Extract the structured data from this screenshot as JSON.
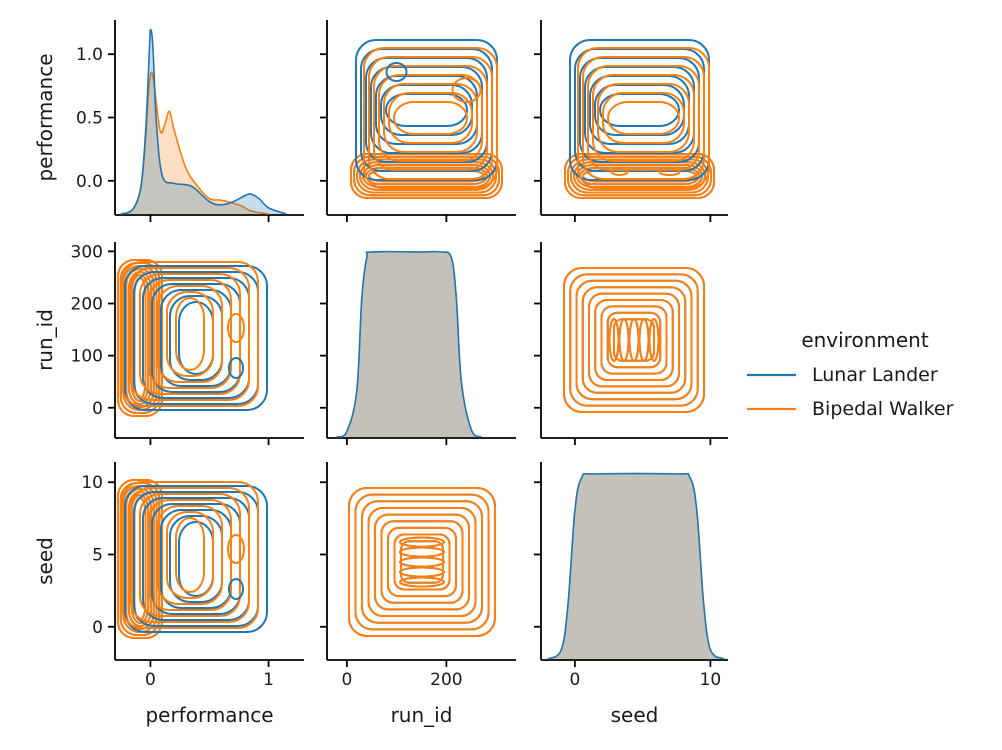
{
  "chart_data": {
    "type": "pairplot",
    "variables": [
      "performance",
      "run_id",
      "seed"
    ],
    "hue": "environment",
    "legend": {
      "title": "environment",
      "placement": "right",
      "entries": [
        {
          "label": "Lunar Lander",
          "color": "#1f77b4"
        },
        {
          "label": "Bipedal Walker",
          "color": "#ff7f0e"
        }
      ]
    },
    "diag_overlap_color": "#c4c1bb",
    "axes": {
      "performance": {
        "lim": [
          -0.3,
          1.3
        ],
        "ticks": [
          0,
          1
        ],
        "row_lim": [
          -0.27,
          1.27
        ],
        "row_ticks": [
          0.0,
          0.5,
          1.0
        ],
        "row_tick_labels": [
          "0.0",
          "0.5",
          "1.0"
        ]
      },
      "run_id": {
        "lim": [
          -40,
          340
        ],
        "ticks": [
          0,
          200
        ],
        "row_lim": [
          -58,
          318
        ],
        "row_ticks": [
          0,
          100,
          200,
          300
        ]
      },
      "seed": {
        "lim": [
          -2.5,
          11.3
        ],
        "ticks": [
          0,
          10
        ],
        "row_lim": [
          -2.3,
          11.4
        ],
        "row_ticks": [
          0,
          5,
          10
        ]
      }
    },
    "diagonal_kde": {
      "performance": {
        "Lunar Lander": [
          [
            -0.25,
            0.0
          ],
          [
            -0.15,
            0.03
          ],
          [
            -0.08,
            0.18
          ],
          [
            -0.04,
            0.55
          ],
          [
            -0.01,
            1.05
          ],
          [
            0.0,
            1.2
          ],
          [
            0.02,
            1.1
          ],
          [
            0.05,
            0.6
          ],
          [
            0.1,
            0.25
          ],
          [
            0.2,
            0.2
          ],
          [
            0.35,
            0.18
          ],
          [
            0.5,
            0.08
          ],
          [
            0.6,
            0.06
          ],
          [
            0.7,
            0.08
          ],
          [
            0.8,
            0.12
          ],
          [
            0.85,
            0.13
          ],
          [
            0.92,
            0.1
          ],
          [
            1.0,
            0.04
          ],
          [
            1.15,
            0.0
          ]
        ],
        "Bipedal Walker": [
          [
            -0.25,
            0.0
          ],
          [
            -0.15,
            0.03
          ],
          [
            -0.08,
            0.18
          ],
          [
            -0.04,
            0.5
          ],
          [
            -0.01,
            0.85
          ],
          [
            0.02,
            0.9
          ],
          [
            0.08,
            0.55
          ],
          [
            0.12,
            0.58
          ],
          [
            0.16,
            0.67
          ],
          [
            0.2,
            0.55
          ],
          [
            0.3,
            0.3
          ],
          [
            0.4,
            0.18
          ],
          [
            0.5,
            0.1
          ],
          [
            0.6,
            0.09
          ],
          [
            0.7,
            0.07
          ],
          [
            0.78,
            0.05
          ],
          [
            0.85,
            0.02
          ],
          [
            1.0,
            0.0
          ]
        ]
      },
      "run_id": {
        "Lunar Lander": [
          [
            -20,
            0.0
          ],
          [
            0,
            0.03
          ],
          [
            20,
            0.25
          ],
          [
            30,
            0.75
          ],
          [
            40,
            0.97
          ],
          [
            50,
            1.0
          ],
          [
            150,
            1.0
          ],
          [
            190,
            1.0
          ],
          [
            210,
            0.97
          ],
          [
            220,
            0.75
          ],
          [
            230,
            0.3
          ],
          [
            250,
            0.04
          ],
          [
            270,
            0.0
          ]
        ],
        "Bipedal Walker": [
          [
            -20,
            0.0
          ],
          [
            0,
            0.03
          ],
          [
            20,
            0.25
          ],
          [
            30,
            0.75
          ],
          [
            40,
            0.97
          ],
          [
            50,
            1.0
          ],
          [
            150,
            1.0
          ],
          [
            190,
            1.0
          ],
          [
            210,
            0.97
          ],
          [
            220,
            0.75
          ],
          [
            230,
            0.3
          ],
          [
            250,
            0.04
          ],
          [
            270,
            0.0
          ]
        ]
      },
      "seed": {
        "Lunar Lander": [
          [
            -2.0,
            0.0
          ],
          [
            -1.0,
            0.05
          ],
          [
            -0.5,
            0.3
          ],
          [
            0.0,
            0.8
          ],
          [
            0.5,
            0.98
          ],
          [
            1.5,
            1.0
          ],
          [
            7.5,
            1.0
          ],
          [
            8.5,
            0.98
          ],
          [
            9.0,
            0.8
          ],
          [
            9.5,
            0.3
          ],
          [
            10.0,
            0.05
          ],
          [
            11.0,
            0.0
          ]
        ],
        "Bipedal Walker": [
          [
            -2.0,
            0.0
          ],
          [
            -1.0,
            0.05
          ],
          [
            -0.5,
            0.3
          ],
          [
            0.0,
            0.8
          ],
          [
            0.5,
            0.98
          ],
          [
            1.5,
            1.0
          ],
          [
            7.5,
            1.0
          ],
          [
            8.5,
            0.98
          ],
          [
            9.0,
            0.8
          ],
          [
            9.5,
            0.3
          ],
          [
            10.0,
            0.05
          ],
          [
            11.0,
            0.0
          ]
        ]
      }
    }
  }
}
